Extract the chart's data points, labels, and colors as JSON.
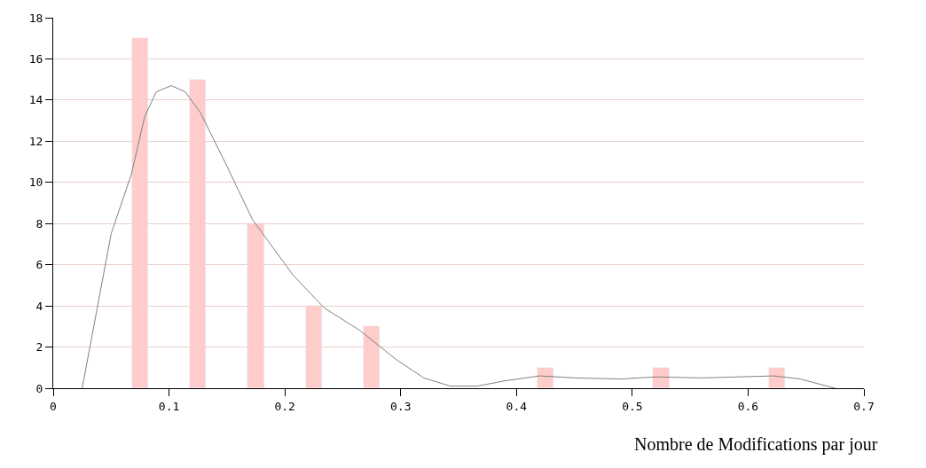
{
  "chart_data": {
    "type": "bar",
    "xlabel": "Nombre de Modifications par jour",
    "xlim": [
      0,
      0.7
    ],
    "xticks": [
      0,
      0.1,
      0.2,
      0.3,
      0.4,
      0.5,
      0.6,
      0.7
    ],
    "ylim": [
      0,
      18
    ],
    "yticks": [
      0,
      2,
      4,
      6,
      8,
      10,
      12,
      14,
      16,
      18
    ],
    "grid": "y",
    "series": [
      {
        "color": "#ffcccc",
        "x": [
          0.075,
          0.125,
          0.175,
          0.225,
          0.275,
          0.425,
          0.525,
          0.625
        ],
        "values": [
          17,
          15,
          8,
          4,
          3,
          1,
          1,
          1
        ]
      },
      {
        "type": "line",
        "color": "#808080",
        "marker": "none",
        "line_style": "solid",
        "x": [
          0.025,
          0.05,
          0.0675,
          0.079,
          0.089,
          0.102,
          0.114,
          0.127,
          0.149,
          0.172,
          0.207,
          0.234,
          0.265,
          0.296,
          0.32,
          0.343,
          0.366,
          0.389,
          0.42,
          0.451,
          0.49,
          0.521,
          0.56,
          0.591,
          0.622,
          0.645,
          0.675
        ],
        "values": [
          0,
          7.5,
          10.4,
          13.2,
          14.4,
          14.7,
          14.4,
          13.4,
          10.9,
          8.2,
          5.5,
          3.9,
          2.8,
          1.4,
          0.5,
          0.1,
          0.1,
          0.35,
          0.6,
          0.5,
          0.45,
          0.55,
          0.5,
          0.55,
          0.6,
          0.45,
          0
        ]
      }
    ]
  }
}
